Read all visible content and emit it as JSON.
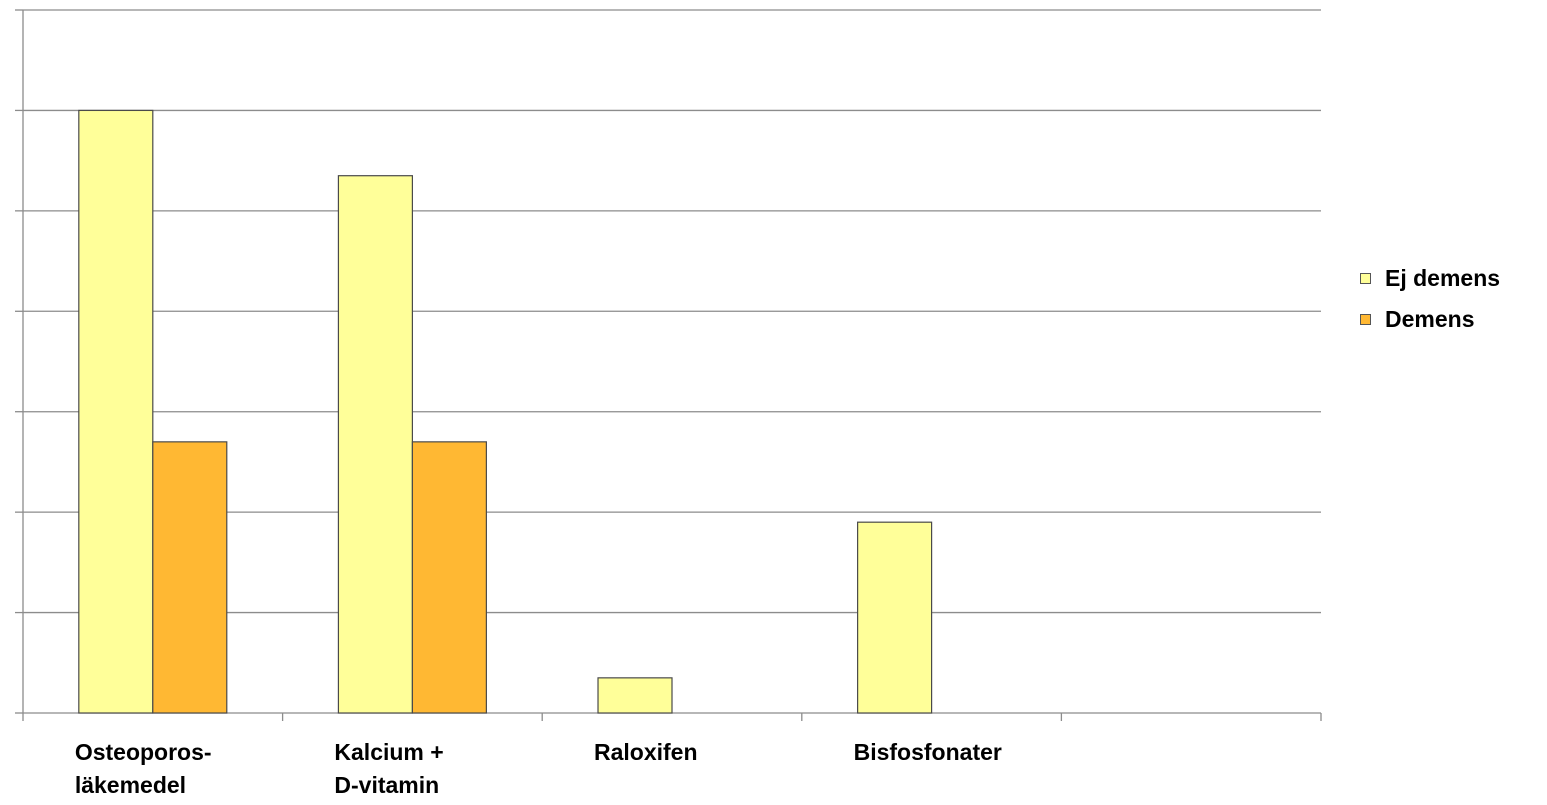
{
  "chart_data": {
    "type": "bar",
    "categories": [
      "Osteoporos-\nläkemedel",
      "Kalcium +\nD-vitamin",
      "Raloxifen",
      "Bisfosfonater",
      ""
    ],
    "series": [
      {
        "name": "Ej demens",
        "values": [
          6.0,
          5.35,
          0.35,
          1.9,
          null
        ],
        "color": "#ffff99"
      },
      {
        "name": "Demens",
        "values": [
          2.7,
          2.7,
          null,
          null,
          null
        ],
        "color": "#ffb833"
      }
    ],
    "ylim": [
      0,
      7
    ],
    "grid": true,
    "y_tick_labels_shown": false,
    "legend_position": "right",
    "xlabel": "",
    "ylabel": ""
  }
}
